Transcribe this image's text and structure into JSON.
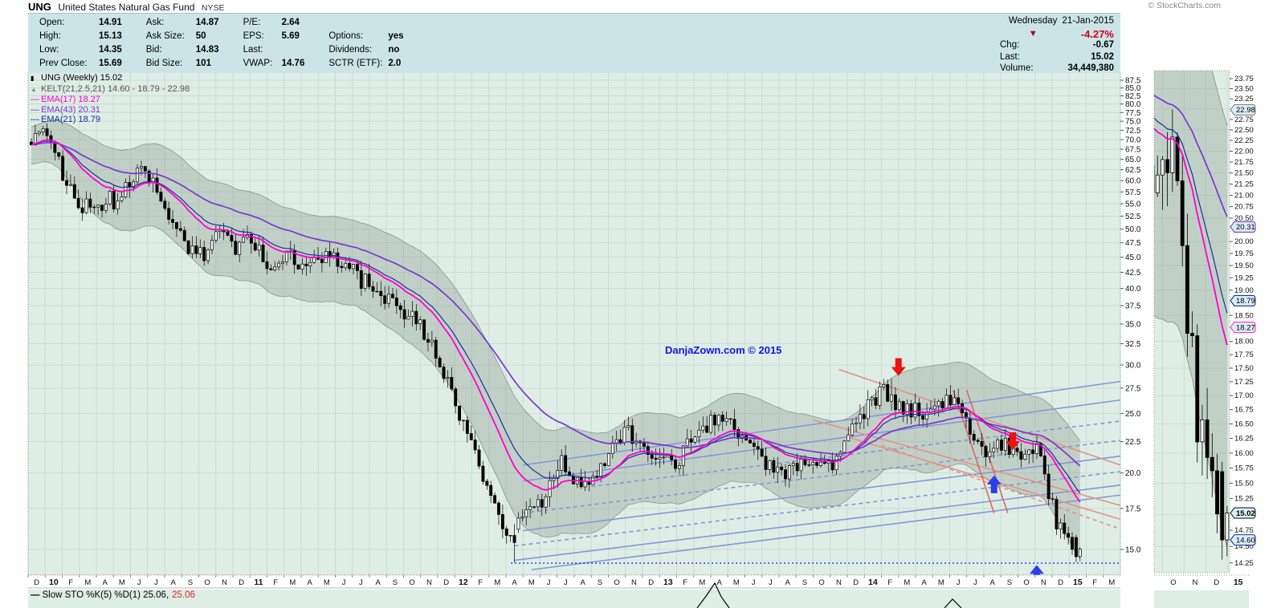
{
  "page": {
    "title_symbol": "UNG",
    "title_name": "United States Natural Gas Fund",
    "title_exchange": "NYSE",
    "copyright": "© StockCharts.com"
  },
  "quote": {
    "columns": [
      [
        {
          "l": "Open:",
          "v": "14.91"
        },
        {
          "l": "High:",
          "v": "15.13"
        },
        {
          "l": "Low:",
          "v": "14.35"
        },
        {
          "l": "Prev Close:",
          "v": "15.69"
        }
      ],
      [
        {
          "l": "Ask:",
          "v": "14.87"
        },
        {
          "l": "Ask Size:",
          "v": "50"
        },
        {
          "l": "Bid:",
          "v": "14.83"
        },
        {
          "l": "Bid Size:",
          "v": "101"
        }
      ],
      [
        {
          "l": "P/E:",
          "v": "2.64"
        },
        {
          "l": "EPS:",
          "v": "5.69"
        },
        {
          "l": "Last:",
          "v": ""
        },
        {
          "l": "VWAP:",
          "v": "14.76"
        }
      ],
      [
        {
          "l": "",
          "v": ""
        },
        {
          "l": "Options:",
          "v": "yes"
        },
        {
          "l": "Dividends:",
          "v": "no"
        },
        {
          "l": "SCTR (ETF):",
          "v": "2.0"
        }
      ]
    ],
    "date_day": "Wednesday",
    "date": "21-Jan-2015",
    "pct_change": "-4.27%",
    "chg_label": "Chg:",
    "chg": "-0.67",
    "last_label": "Last:",
    "last": "15.02",
    "volume_label": "Volume:",
    "volume": "34,449,380"
  },
  "legend": {
    "main": "UNG (Weekly) 15.02",
    "kelt": "KELT(21,2.5,21) 14.60 - 18.79 - 22.98",
    "ema17": "EMA(17) 18.27",
    "ema43": "EMA(43) 20.31",
    "ema21": "EMA(21) 18.79"
  },
  "watermark": "DanjaZown.com © 2015",
  "sto": {
    "dash": "—",
    "prefix": "Slow STO %K(5) %D(1) 25.06,",
    "red_value": "25.06"
  },
  "chart_data": {
    "type": "candlestick",
    "symbol": "UNG",
    "timeframe": "Weekly",
    "title": "UNG (Weekly) 15.02",
    "last_close": 15.02,
    "y_axis_scale": "log",
    "y_ticks": [
      87.5,
      85.0,
      82.5,
      80.0,
      77.5,
      75.0,
      72.5,
      70.0,
      67.5,
      65.0,
      62.5,
      60.0,
      57.5,
      55.0,
      52.5,
      50.0,
      47.5,
      45.0,
      42.5,
      40.0,
      37.5,
      35.0,
      32.5,
      30.0,
      27.5,
      25.0,
      22.5,
      20.0,
      17.5,
      15.0
    ],
    "x_labels": [
      "D",
      "10",
      "F",
      "M",
      "A",
      "M",
      "J",
      "J",
      "A",
      "S",
      "O",
      "N",
      "D",
      "11",
      "F",
      "M",
      "A",
      "M",
      "J",
      "J",
      "A",
      "S",
      "O",
      "N",
      "D",
      "12",
      "F",
      "M",
      "A",
      "M",
      "J",
      "J",
      "A",
      "S",
      "O",
      "N",
      "D",
      "13",
      "F",
      "M",
      "A",
      "M",
      "J",
      "J",
      "A",
      "S",
      "O",
      "N",
      "D",
      "14",
      "F",
      "M",
      "A",
      "M",
      "J",
      "J",
      "A",
      "S",
      "O",
      "N",
      "D",
      "15",
      "F",
      "M"
    ],
    "keltner": {
      "params": "21,2.5,21",
      "lower": 14.6,
      "mid": 18.79,
      "upper": 22.98
    },
    "emas": [
      {
        "period": 17,
        "value": 18.27,
        "color_key": "ema17"
      },
      {
        "period": 43,
        "value": 20.31,
        "color_key": "ema43"
      },
      {
        "period": 21,
        "value": 18.79,
        "color_key": "ema21"
      }
    ],
    "anchor_format": "[month_index_from_Dec2009, approx_weekly_close]",
    "monthly_close_anchors": [
      [
        0,
        70
      ],
      [
        1,
        72
      ],
      [
        2,
        60
      ],
      [
        3,
        54
      ],
      [
        4,
        55
      ],
      [
        5,
        56
      ],
      [
        6,
        62
      ],
      [
        7,
        60
      ],
      [
        8,
        52
      ],
      [
        9,
        48
      ],
      [
        10,
        45
      ],
      [
        11,
        50
      ],
      [
        12,
        46
      ],
      [
        13,
        48
      ],
      [
        14,
        44
      ],
      [
        15,
        46
      ],
      [
        16,
        43
      ],
      [
        17,
        45
      ],
      [
        18,
        44
      ],
      [
        19,
        42
      ],
      [
        20,
        40
      ],
      [
        21,
        38
      ],
      [
        22,
        36.5
      ],
      [
        23,
        34
      ],
      [
        24,
        30
      ],
      [
        25,
        25.5
      ],
      [
        26,
        21.5
      ],
      [
        27,
        17.8
      ],
      [
        28,
        15.2
      ],
      [
        29,
        17.3
      ],
      [
        30,
        18.3
      ],
      [
        31,
        20.8
      ],
      [
        32,
        19.3
      ],
      [
        33,
        19.8
      ],
      [
        34,
        22.2
      ],
      [
        35,
        23.2
      ],
      [
        36,
        21.6
      ],
      [
        37,
        21.2
      ],
      [
        38,
        21.0
      ],
      [
        39,
        23.2
      ],
      [
        40,
        24.4
      ],
      [
        41,
        23.6
      ],
      [
        42,
        21.8
      ],
      [
        43,
        20.6
      ],
      [
        44,
        19.6
      ],
      [
        45,
        20.6
      ],
      [
        46,
        20.8
      ],
      [
        47,
        20.0
      ],
      [
        48,
        23.2
      ],
      [
        49,
        25.8
      ],
      [
        50,
        27.3
      ],
      [
        51,
        25.6
      ],
      [
        52,
        25.0
      ],
      [
        53,
        25.3
      ],
      [
        54,
        26.8
      ],
      [
        55,
        23.2
      ],
      [
        56,
        21.6
      ],
      [
        57,
        22.3
      ],
      [
        58,
        21.3
      ],
      [
        59,
        22.4
      ],
      [
        60,
        16.8
      ],
      [
        61,
        15.1
      ],
      [
        61.7,
        15.0
      ]
    ],
    "last_candle": {
      "open": 14.6,
      "high": 15.13,
      "low": 14.35,
      "close": 15.02
    },
    "trendlines": [
      {
        "style": "solid",
        "color": "blue",
        "from": [
          28.5,
          14.4
        ],
        "to": [
          64,
          19.1
        ]
      },
      {
        "style": "solid",
        "color": "blue",
        "from": [
          29.5,
          13.9
        ],
        "to": [
          64,
          18.4
        ]
      },
      {
        "style": "solid",
        "color": "blue",
        "from": [
          29,
          16.1
        ],
        "to": [
          64,
          21.3
        ]
      },
      {
        "style": "solid",
        "color": "blue",
        "from": [
          29,
          19.4
        ],
        "to": [
          64,
          26.3
        ]
      },
      {
        "style": "solid",
        "color": "blue",
        "from": [
          29,
          20.6
        ],
        "to": [
          64,
          28.2
        ]
      },
      {
        "style": "dashed",
        "color": "blue",
        "from": [
          28.5,
          15.2
        ],
        "to": [
          64,
          20.1
        ]
      },
      {
        "style": "dashed",
        "color": "blue",
        "from": [
          29,
          17.2
        ],
        "to": [
          64,
          22.6
        ]
      },
      {
        "style": "dashed",
        "color": "blue",
        "from": [
          33,
          19.0
        ],
        "to": [
          64,
          24.3
        ]
      },
      {
        "style": "solid",
        "color": "salmon",
        "from": [
          47.5,
          29.5
        ],
        "to": [
          64,
          20.6
        ]
      },
      {
        "style": "solid",
        "color": "salmon",
        "from": [
          46,
          24.4
        ],
        "to": [
          64,
          17.7
        ]
      },
      {
        "style": "solid",
        "color": "salmon",
        "from": [
          48,
          22.9
        ],
        "to": [
          64,
          16.8
        ]
      },
      {
        "style": "dashed",
        "color": "salmon",
        "from": [
          50,
          22.2
        ],
        "to": [
          64,
          16.2
        ]
      },
      {
        "style": "solid",
        "color": "red",
        "from": [
          54.2,
          27.3
        ],
        "to": [
          56.6,
          17.2
        ]
      },
      {
        "style": "solid",
        "color": "red",
        "from": [
          55.0,
          27.3
        ],
        "to": [
          57.4,
          17.2
        ]
      }
    ],
    "arrows": [
      {
        "dir": "down",
        "month": 50.5,
        "price": 28.8,
        "color": "#ee1111"
      },
      {
        "dir": "down",
        "month": 57.2,
        "price": 21.8,
        "color": "#ee1111"
      },
      {
        "dir": "up",
        "month": 56.1,
        "price": 19.8,
        "color": "#2b3fe8"
      },
      {
        "dir": "up",
        "month": 58.6,
        "price": 14.15,
        "color": "#2b3fe8"
      }
    ],
    "support_line": {
      "price": 14.25,
      "from_month": 28.3,
      "to_month": 64,
      "color": "#1a1af0"
    },
    "mini": {
      "x_labels": [
        "O",
        "N",
        "D",
        "15"
      ],
      "tick_max": 23.75,
      "tick_min": 14.25,
      "tick_step": 0.25,
      "skip_ticks": [
        23.0,
        20.25,
        18.75,
        18.25,
        15.0
      ],
      "callouts": [
        {
          "value": "22.98",
          "color": "#808080",
          "bold": false
        },
        {
          "value": "20.31",
          "color": "#7a36cf",
          "bold": false
        },
        {
          "value": "18.79",
          "color": "#173097",
          "bold": false
        },
        {
          "value": "18.27",
          "color": "#ff30c0",
          "bold": false
        },
        {
          "value": "15.02",
          "color": "#222222",
          "bold": true
        },
        {
          "value": "14.60",
          "color": "#173097",
          "bold": false
        }
      ]
    },
    "colors": {
      "chart_bg": "#deeee6",
      "grid": "#c3d8cb",
      "band_fill": "rgba(125,140,128,0.30)",
      "band_edge": "#8f9e90",
      "frame": "#8aa094",
      "trend_blue": "#8696d8",
      "trend_salmon": "#e29384",
      "trend_red": "#d96868",
      "ema17": "#ff00cd",
      "ema43": "#7a36cf",
      "ema21": "#173097",
      "callout_bg": "#d9eef7"
    }
  }
}
